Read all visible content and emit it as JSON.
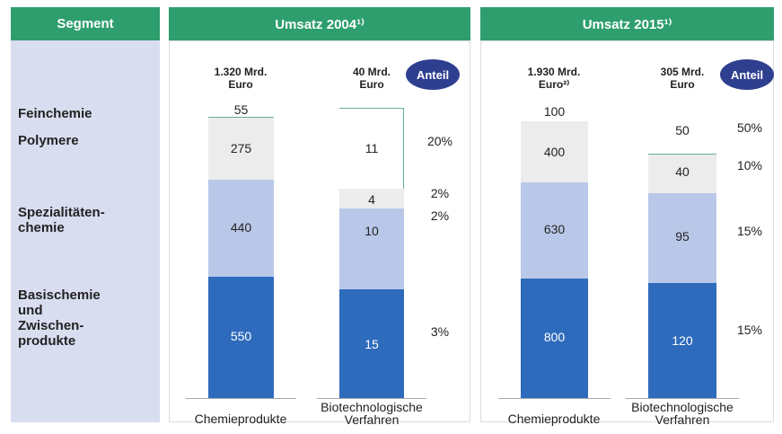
{
  "header": {
    "segment": "Segment",
    "panels": [
      "Umsatz 2004¹⁾",
      "Umsatz 2015¹⁾"
    ]
  },
  "rows": [
    "Feinchemie",
    "Polymere",
    "Spezialitäten-\nchemie",
    "Basischemie\nund\nZwischen-\nprodukte"
  ],
  "panels": [
    {
      "share_label": "Anteil",
      "shares": [
        "20%",
        "2%",
        "2%",
        "3%"
      ],
      "columns": [
        {
          "total": "1.320 Mrd.\nEuro",
          "label": "Chemieprodukte",
          "segments": [
            "55",
            "275",
            "440",
            "550"
          ]
        },
        {
          "total": "40 Mrd.\nEuro",
          "label": "Biotechnologische\nVerfahren",
          "segments": [
            "11",
            "4",
            "10",
            "15"
          ]
        }
      ]
    },
    {
      "share_label": "Anteil",
      "shares": [
        "50%",
        "10%",
        "15%",
        "15%"
      ],
      "columns": [
        {
          "total": "1.930 Mrd.\nEuro²⁾",
          "label": "Chemieprodukte",
          "segments": [
            "100",
            "400",
            "630",
            "800"
          ]
        },
        {
          "total": "305 Mrd.\nEuro",
          "label": "Biotechnologische\nVerfahren",
          "segments": [
            "50",
            "40",
            "95",
            "120"
          ]
        }
      ]
    }
  ]
}
